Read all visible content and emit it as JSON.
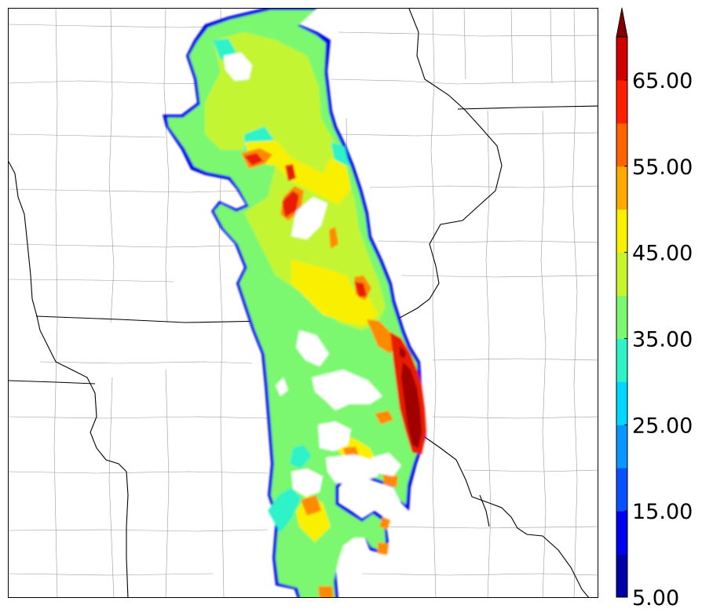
{
  "colorbar": {
    "tick_labels": [
      "5.00",
      "15.00",
      "25.00",
      "35.00",
      "45.00",
      "55.00",
      "65.00"
    ],
    "min": 5,
    "max": 70,
    "step": 5,
    "extend": "max",
    "colors": [
      "#0000a8",
      "#0000f0",
      "#0a50ff",
      "#0a96ff",
      "#00d8ff",
      "#2ff2c8",
      "#7cf870",
      "#c4f530",
      "#f8f000",
      "#ffaa00",
      "#ff6400",
      "#ff1e00",
      "#d00000",
      "#800000"
    ]
  },
  "map": {
    "state_boundary_color": "#000000",
    "county_boundary_color": "#8a8a8a"
  }
}
